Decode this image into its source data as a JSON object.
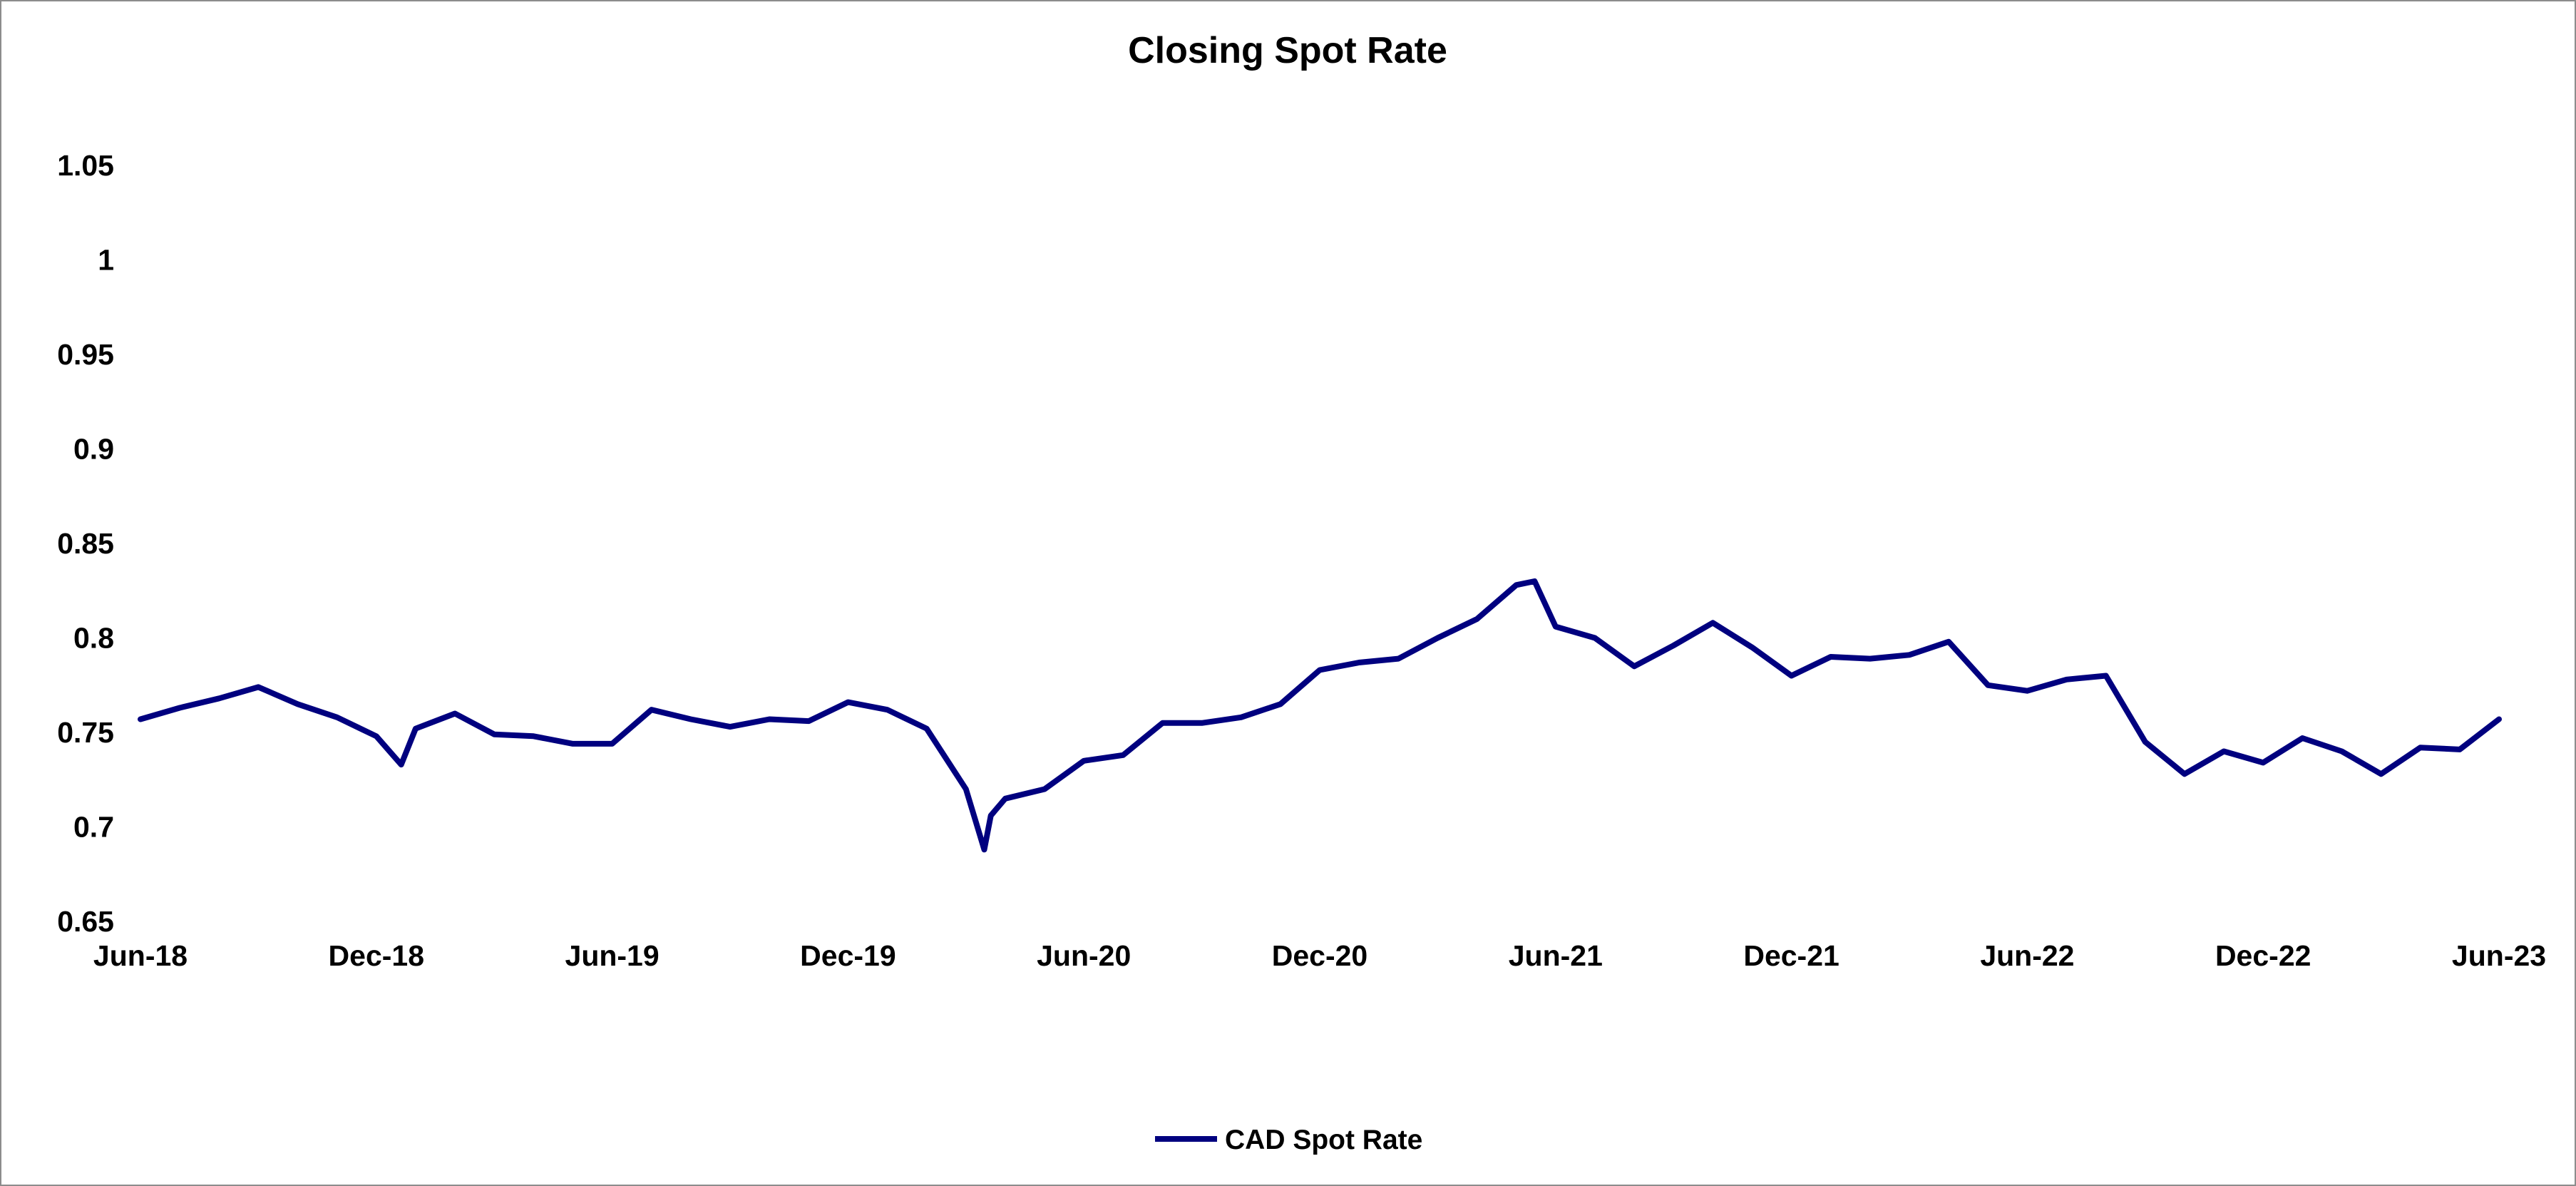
{
  "chart_data": {
    "type": "line",
    "title": "Closing Spot Rate",
    "xlabel": "",
    "ylabel": "",
    "x_tick_labels": [
      "Jun-18",
      "Dec-18",
      "Jun-19",
      "Dec-19",
      "Jun-20",
      "Dec-20",
      "Jun-21",
      "Dec-21",
      "Jun-22",
      "Dec-22",
      "Jun-23"
    ],
    "y_tick_labels": [
      "0.65",
      "0.7",
      "0.75",
      "0.8",
      "0.85",
      "0.9",
      "0.95",
      "1",
      "1.05"
    ],
    "xlim": [
      "2018-06",
      "2023-06"
    ],
    "ylim": [
      0.65,
      1.05
    ],
    "grid": false,
    "legend_position": "bottom",
    "series_color": "#00007f",
    "series": [
      {
        "name": "CAD Spot Rate",
        "x": [
          "2018-06-01",
          "2018-07-01",
          "2018-08-01",
          "2018-09-01",
          "2018-10-01",
          "2018-11-01",
          "2018-12-01",
          "2018-12-20",
          "2019-01-01",
          "2019-02-01",
          "2019-03-01",
          "2019-04-01",
          "2019-05-01",
          "2019-06-01",
          "2019-07-01",
          "2019-08-01",
          "2019-09-01",
          "2019-10-01",
          "2019-11-01",
          "2019-12-01",
          "2020-01-01",
          "2020-02-01",
          "2020-03-01",
          "2020-03-15",
          "2020-03-20",
          "2020-04-01",
          "2020-05-01",
          "2020-06-01",
          "2020-07-01",
          "2020-08-01",
          "2020-09-01",
          "2020-10-01",
          "2020-11-01",
          "2020-12-01",
          "2021-01-01",
          "2021-02-01",
          "2021-03-01",
          "2021-04-01",
          "2021-05-01",
          "2021-05-15",
          "2021-06-01",
          "2021-07-01",
          "2021-08-01",
          "2021-09-01",
          "2021-10-01",
          "2021-11-01",
          "2021-12-01",
          "2022-01-01",
          "2022-02-01",
          "2022-03-01",
          "2022-04-01",
          "2022-05-01",
          "2022-06-01",
          "2022-07-01",
          "2022-08-01",
          "2022-09-01",
          "2022-10-01",
          "2022-11-01",
          "2022-12-01",
          "2023-01-01",
          "2023-02-01",
          "2023-03-01",
          "2023-04-01",
          "2023-05-01",
          "2023-06-01"
        ],
        "y": [
          0.757,
          0.763,
          0.768,
          0.774,
          0.765,
          0.758,
          0.748,
          0.733,
          0.752,
          0.76,
          0.749,
          0.748,
          0.744,
          0.744,
          0.762,
          0.757,
          0.753,
          0.757,
          0.756,
          0.766,
          0.762,
          0.752,
          0.72,
          0.688,
          0.706,
          0.715,
          0.72,
          0.735,
          0.738,
          0.755,
          0.755,
          0.758,
          0.765,
          0.783,
          0.787,
          0.789,
          0.8,
          0.81,
          0.828,
          0.83,
          0.806,
          0.8,
          0.785,
          0.796,
          0.808,
          0.795,
          0.78,
          0.79,
          0.789,
          0.791,
          0.798,
          0.775,
          0.772,
          0.778,
          0.78,
          0.745,
          0.728,
          0.74,
          0.734,
          0.747,
          0.74,
          0.728,
          0.742,
          0.741,
          0.757
        ]
      }
    ]
  }
}
